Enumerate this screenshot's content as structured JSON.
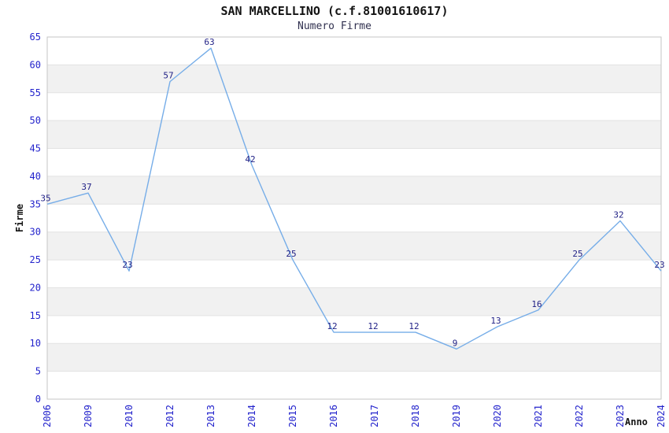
{
  "header": {
    "title": "SAN MARCELLINO (c.f.81001610617)",
    "subtitle": "Numero Firme"
  },
  "chart_data": {
    "type": "line",
    "title": "SAN MARCELLINO (c.f.81001610617)",
    "subtitle": "Numero Firme",
    "xlabel": "Anno",
    "ylabel": "Firme",
    "categories": [
      "2006",
      "2009",
      "2010",
      "2012",
      "2013",
      "2014",
      "2015",
      "2016",
      "2017",
      "2018",
      "2019",
      "2020",
      "2021",
      "2022",
      "2023",
      "2024"
    ],
    "values": [
      35,
      37,
      23,
      57,
      63,
      42,
      25,
      12,
      12,
      12,
      9,
      13,
      16,
      25,
      32,
      23
    ],
    "ylim": [
      0,
      65
    ],
    "ytick_step": 5,
    "grid": true,
    "stripes": true,
    "data_labels": true,
    "legend": "none"
  },
  "colors": {
    "title": "#141414",
    "subtitle": "#30304f",
    "axis_title": "#141414",
    "axis_tick": "#2323cc",
    "data_label": "#1f1f85",
    "line": "#76ade8",
    "stripe": "#f1f1f1",
    "grid": "#e2e2e2",
    "border": "#c6c6c6",
    "background": "#ffffff"
  }
}
